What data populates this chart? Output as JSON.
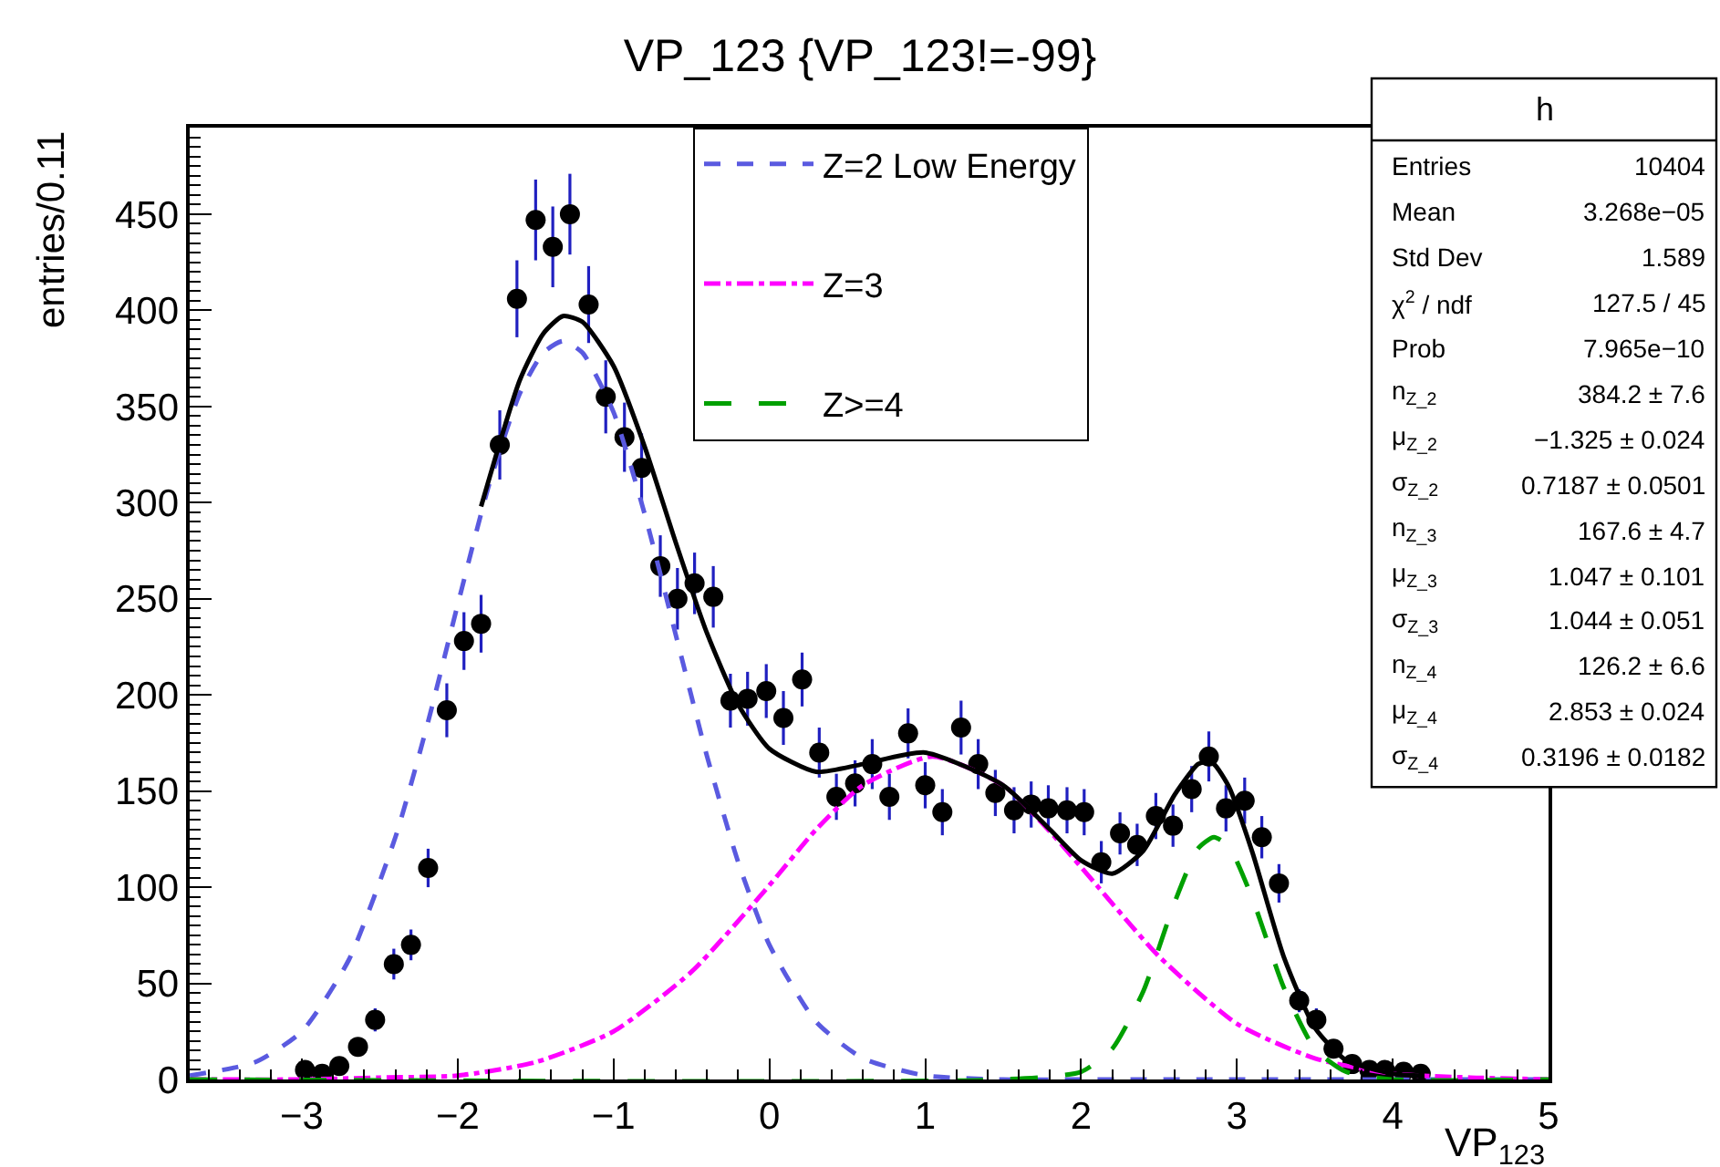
{
  "chart_data": {
    "type": "scatter",
    "title": "VP_123 {VP_123!=-99}",
    "xlabel": "VP$_{123}$",
    "ylabel": "entries/0.11",
    "xlim": [
      -3.72,
      5
    ],
    "ylim": [
      0,
      495
    ],
    "xticks": [
      -3,
      -2,
      -1,
      0,
      1,
      2,
      3,
      4,
      5
    ],
    "yticks": [
      0,
      50,
      100,
      150,
      200,
      250,
      300,
      350,
      400,
      450
    ],
    "legend": "top",
    "series": [
      {
        "marker": "circle",
        "color": "#000000",
        "x": [
          -2.98,
          -2.87,
          -2.76,
          -2.64,
          -2.53,
          -2.41,
          -2.3,
          -2.19,
          -2.07,
          -1.96,
          -1.85,
          -1.73,
          -1.62,
          -1.5,
          -1.39,
          -1.28,
          -1.16,
          -1.05,
          -0.93,
          -0.82,
          -0.7,
          -0.59,
          -0.48,
          -0.36,
          -0.25,
          -0.14,
          -0.02,
          0.09,
          0.21,
          0.32,
          0.43,
          0.55,
          0.66,
          0.77,
          0.89,
          1.0,
          1.11,
          1.23,
          1.34,
          1.45,
          1.57,
          1.68,
          1.79,
          1.91,
          2.02,
          2.13,
          2.25,
          2.36,
          2.48,
          2.59,
          2.71,
          2.82,
          2.93,
          3.05,
          3.16,
          3.27,
          3.4,
          3.51,
          3.62,
          3.74,
          3.85,
          3.95,
          4.07,
          4.18
        ],
        "values": [
          5,
          3,
          7,
          17,
          31,
          60,
          70,
          110,
          192,
          228,
          237,
          330,
          406,
          447,
          433,
          450,
          403,
          355,
          334,
          318,
          267,
          250,
          258,
          251,
          197,
          198,
          202,
          188,
          208,
          170,
          147,
          154,
          164,
          147,
          180,
          153,
          139,
          183,
          164,
          149,
          140,
          143,
          141,
          140,
          139,
          113,
          128,
          122,
          137,
          132,
          151,
          168,
          141,
          145,
          126,
          102,
          41,
          31,
          16,
          8,
          5,
          5,
          4,
          3
        ],
        "errors": [
          null,
          null,
          null,
          null,
          6,
          8,
          8,
          10,
          14,
          15,
          15,
          18,
          20,
          21,
          21,
          21,
          20,
          19,
          18,
          18,
          16,
          16,
          16,
          16,
          14,
          14,
          14,
          14,
          14,
          13,
          12,
          12,
          13,
          12,
          13,
          12,
          12,
          14,
          13,
          12,
          12,
          12,
          12,
          12,
          12,
          11,
          11,
          11,
          12,
          11,
          12,
          13,
          12,
          12,
          11,
          10,
          6,
          6,
          null,
          null,
          null,
          null,
          null,
          null
        ]
      },
      {
        "type": "line",
        "name": "Z=2 Low Energy",
        "color": "#5a5ae0",
        "line_style": "dashed",
        "x": [
          -3.72,
          -3.3,
          -3.0,
          -2.7,
          -2.4,
          -2.2,
          -2.0,
          -1.8,
          -1.6,
          -1.45,
          -1.325,
          -1.2,
          -1.0,
          -0.8,
          -0.6,
          -0.4,
          -0.2,
          0,
          0.3,
          0.6,
          1.0,
          1.5,
          2.0,
          3.0,
          5.0
        ],
        "values": [
          2,
          9,
          25,
          62,
          126,
          183,
          247,
          309,
          357,
          378,
          384,
          378,
          347,
          294,
          231,
          168,
          113,
          70,
          30,
          11,
          2,
          0,
          0,
          0,
          0
        ]
      },
      {
        "type": "line",
        "name": "Z=3",
        "color": "#ff00ff",
        "line_style": "dashdot",
        "x": [
          -3.72,
          -3.0,
          -2.5,
          -2.0,
          -1.5,
          -1.0,
          -0.5,
          0,
          0.3,
          0.6,
          1.047,
          1.5,
          1.8,
          2.1,
          2.5,
          3.0,
          3.5,
          4.0,
          4.5,
          5.0
        ],
        "values": [
          0,
          0,
          1,
          2,
          9,
          25,
          56,
          101,
          130,
          153,
          168,
          153,
          129,
          101,
          64,
          29,
          11,
          3,
          1,
          0
        ]
      },
      {
        "type": "line",
        "name": "Z>=4",
        "color": "#00a000",
        "line_style": "longdash",
        "x": [
          -3.72,
          1.5,
          2.0,
          2.2,
          2.4,
          2.6,
          2.75,
          2.853,
          2.95,
          3.1,
          3.3,
          3.5,
          3.7,
          4.0,
          5.0
        ],
        "values": [
          0,
          0,
          4,
          16,
          46,
          92,
          120,
          126,
          121,
          94,
          48,
          16,
          4,
          0,
          0
        ]
      },
      {
        "type": "line",
        "color": "#000000",
        "line_style": "solid",
        "x": [
          -1.85,
          -1.6,
          -1.45,
          -1.325,
          -1.2,
          -1.0,
          -0.8,
          -0.6,
          -0.4,
          -0.2,
          0,
          0.3,
          0.6,
          1.0,
          1.5,
          1.8,
          2.0,
          2.2,
          2.4,
          2.6,
          2.75,
          2.8,
          2.853,
          2.95,
          3.1,
          3.3,
          3.5,
          3.7,
          4.0,
          4.2
        ],
        "values": [
          298,
          364,
          388,
          397,
          394,
          371,
          329,
          279,
          232,
          195,
          172,
          160,
          164,
          170,
          153,
          130,
          114,
          107,
          119,
          148,
          164,
          165,
          164,
          152,
          118,
          64,
          27,
          10,
          3,
          2
        ]
      }
    ],
    "annotations": [
      "h",
      "Entries",
      "10404",
      "Mean",
      "3.268e−05",
      "Std Dev",
      "1.589",
      "χ$^{2}$ / ndf",
      "127.5 / 45",
      "Prob",
      "7.965e−10",
      "n$_{Z_2}$",
      "384.2 ± 7.6",
      "μ$_{Z_2}$",
      "−1.325 ± 0.024",
      "σ$_{Z_2}$",
      "0.7187 ± 0.0501",
      "n$_{Z_3}$",
      "167.6 ± 4.7",
      "μ$_{Z_3}$",
      "1.047 ± 0.101",
      "σ$_{Z_3}$",
      "1.044 ± 0.051",
      "n$_{Z_4}$",
      "126.2 ± 6.6",
      "μ$_{Z_4}$",
      "2.853 ± 0.024",
      "σ$_{Z_4}$",
      "0.3196 ± 0.0182"
    ]
  }
}
